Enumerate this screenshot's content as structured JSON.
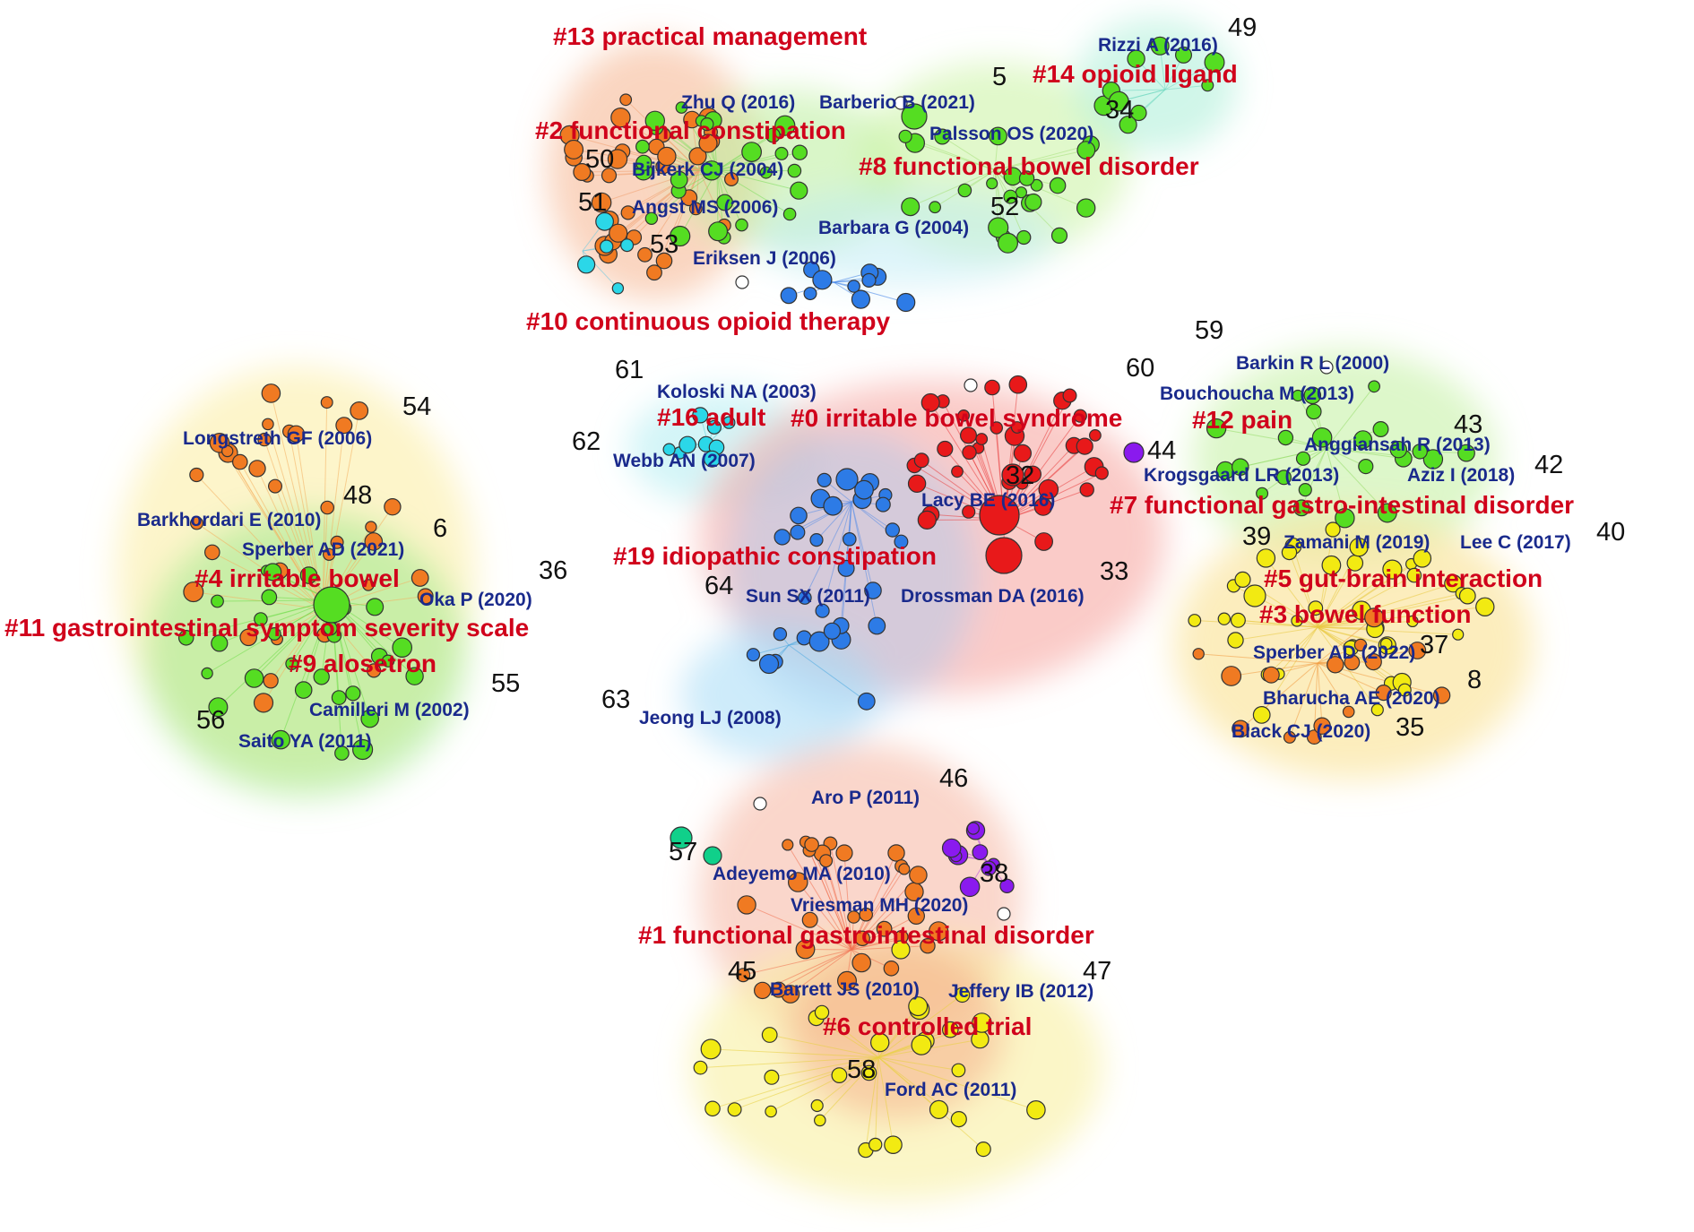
{
  "colors": {
    "cluster_label": "#d0021b",
    "reference_label": "#1a2a8c",
    "number_label": "#111111",
    "red": "#e8191a",
    "orange": "#f07a22",
    "green": "#55dd22",
    "yellow": "#f2ea12",
    "blue": "#2d7be6",
    "cyan": "#2bd7e8",
    "purple": "#8a1aee",
    "teal": "#10d08a",
    "white": "#ffffff"
  },
  "clusters": [
    {
      "id": "c13",
      "label": "#13 practical management"
    },
    {
      "id": "c14",
      "label": "#14 opioid ligand"
    },
    {
      "id": "c2",
      "label": "#2 functional constipation"
    },
    {
      "id": "c8",
      "label": "#8 functional bowel disorder"
    },
    {
      "id": "c10",
      "label": "#10 continuous opioid therapy"
    },
    {
      "id": "c16",
      "label": "#16 adult"
    },
    {
      "id": "c0",
      "label": "#0 irritable bowel syndrome"
    },
    {
      "id": "c12",
      "label": "#12 pain"
    },
    {
      "id": "c7",
      "label": "#7 functional gastro-intestinal disorder"
    },
    {
      "id": "c19",
      "label": "#19 idiopathic constipation"
    },
    {
      "id": "c4",
      "label": "#4 irritable bowel"
    },
    {
      "id": "c11",
      "label": "#11 gastrointestinal symptom severity scale"
    },
    {
      "id": "c9",
      "label": "#9 alosetron"
    },
    {
      "id": "c5",
      "label": "#5 gut-brain interaction"
    },
    {
      "id": "c3",
      "label": "#3 bowel function"
    },
    {
      "id": "c1",
      "label": "#1 functional gastrointestinal disorder"
    },
    {
      "id": "c6",
      "label": "#6 controlled trial"
    }
  ],
  "references": [
    "Rizzi A (2016)",
    "Zhu Q (2016)",
    "Barberio B (2021)",
    "Palsson OS (2020)",
    "Bijkerk CJ (2004)",
    "Angst MS (2006)",
    "Barbara G (2004)",
    "Eriksen J (2006)",
    "Koloski NA (2003)",
    "Webb AN (2007)",
    "Lacy BE (2016)",
    "Sun SX (2011)",
    "Drossman DA (2016)",
    "Jeong LJ (2008)",
    "Longstreth GF (2006)",
    "Barkhordari E (2010)",
    "Sperber AD (2021)",
    "Oka P (2020)",
    "Camilleri M (2002)",
    "Saito YA (2011)",
    "Barkin R L (2000)",
    "Bouchoucha M (2013)",
    "Anggiansah R (2013)",
    "Krogsgaard LR (2013)",
    "Aziz I (2018)",
    "Zamani M (2019)",
    "Lee C (2017)",
    "Sperber AD (2022)",
    "Bharucha AE (2020)",
    "Black CJ (2020)",
    "Aro P (2011)",
    "Adeyemo MA (2010)",
    "Vriesman MH (2020)",
    "Barrett JS (2010)",
    "Jeffery IB (2012)",
    "Ford AC (2011)"
  ],
  "numbers": [
    "49",
    "5",
    "34",
    "50",
    "51",
    "53",
    "52",
    "59",
    "61",
    "60",
    "54",
    "62",
    "44",
    "43",
    "32",
    "42",
    "48",
    "6",
    "39",
    "40",
    "33",
    "36",
    "64",
    "37",
    "55",
    "8",
    "63",
    "56",
    "35",
    "46",
    "57",
    "38",
    "45",
    "47",
    "58"
  ]
}
